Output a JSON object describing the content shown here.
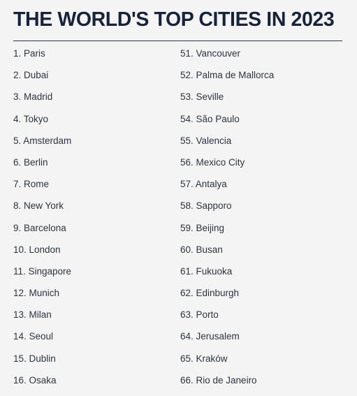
{
  "title": "THE WORLD'S TOP CITIES IN 2023",
  "left_column": [
    "1. Paris",
    "2. Dubai",
    "3. Madrid",
    "4. Tokyo",
    "5. Amsterdam",
    "6. Berlin",
    "7. Rome",
    "8. New York",
    "9. Barcelona",
    "10. London",
    "11. Singapore",
    "12. Munich",
    "13. Milan",
    "14. Seoul",
    "15. Dublin",
    "16. Osaka"
  ],
  "right_column": [
    "51. Vancouver",
    "52. Palma de Mallorca",
    "53. Seville",
    "54. São Paulo",
    "55. Valencia",
    "56. Mexico City",
    "57. Antalya",
    "58. Sapporo",
    "59. Beijing",
    "60. Busan",
    "61. Fukuoka",
    "62. Edinburgh",
    "63. Porto",
    "64. Jerusalem",
    "65. Kraków",
    "66. Rio de Janeiro"
  ],
  "colors": {
    "background": "#f4f4f4",
    "title": "#17233a",
    "text": "#2b3442",
    "rule": "#2a3446"
  }
}
